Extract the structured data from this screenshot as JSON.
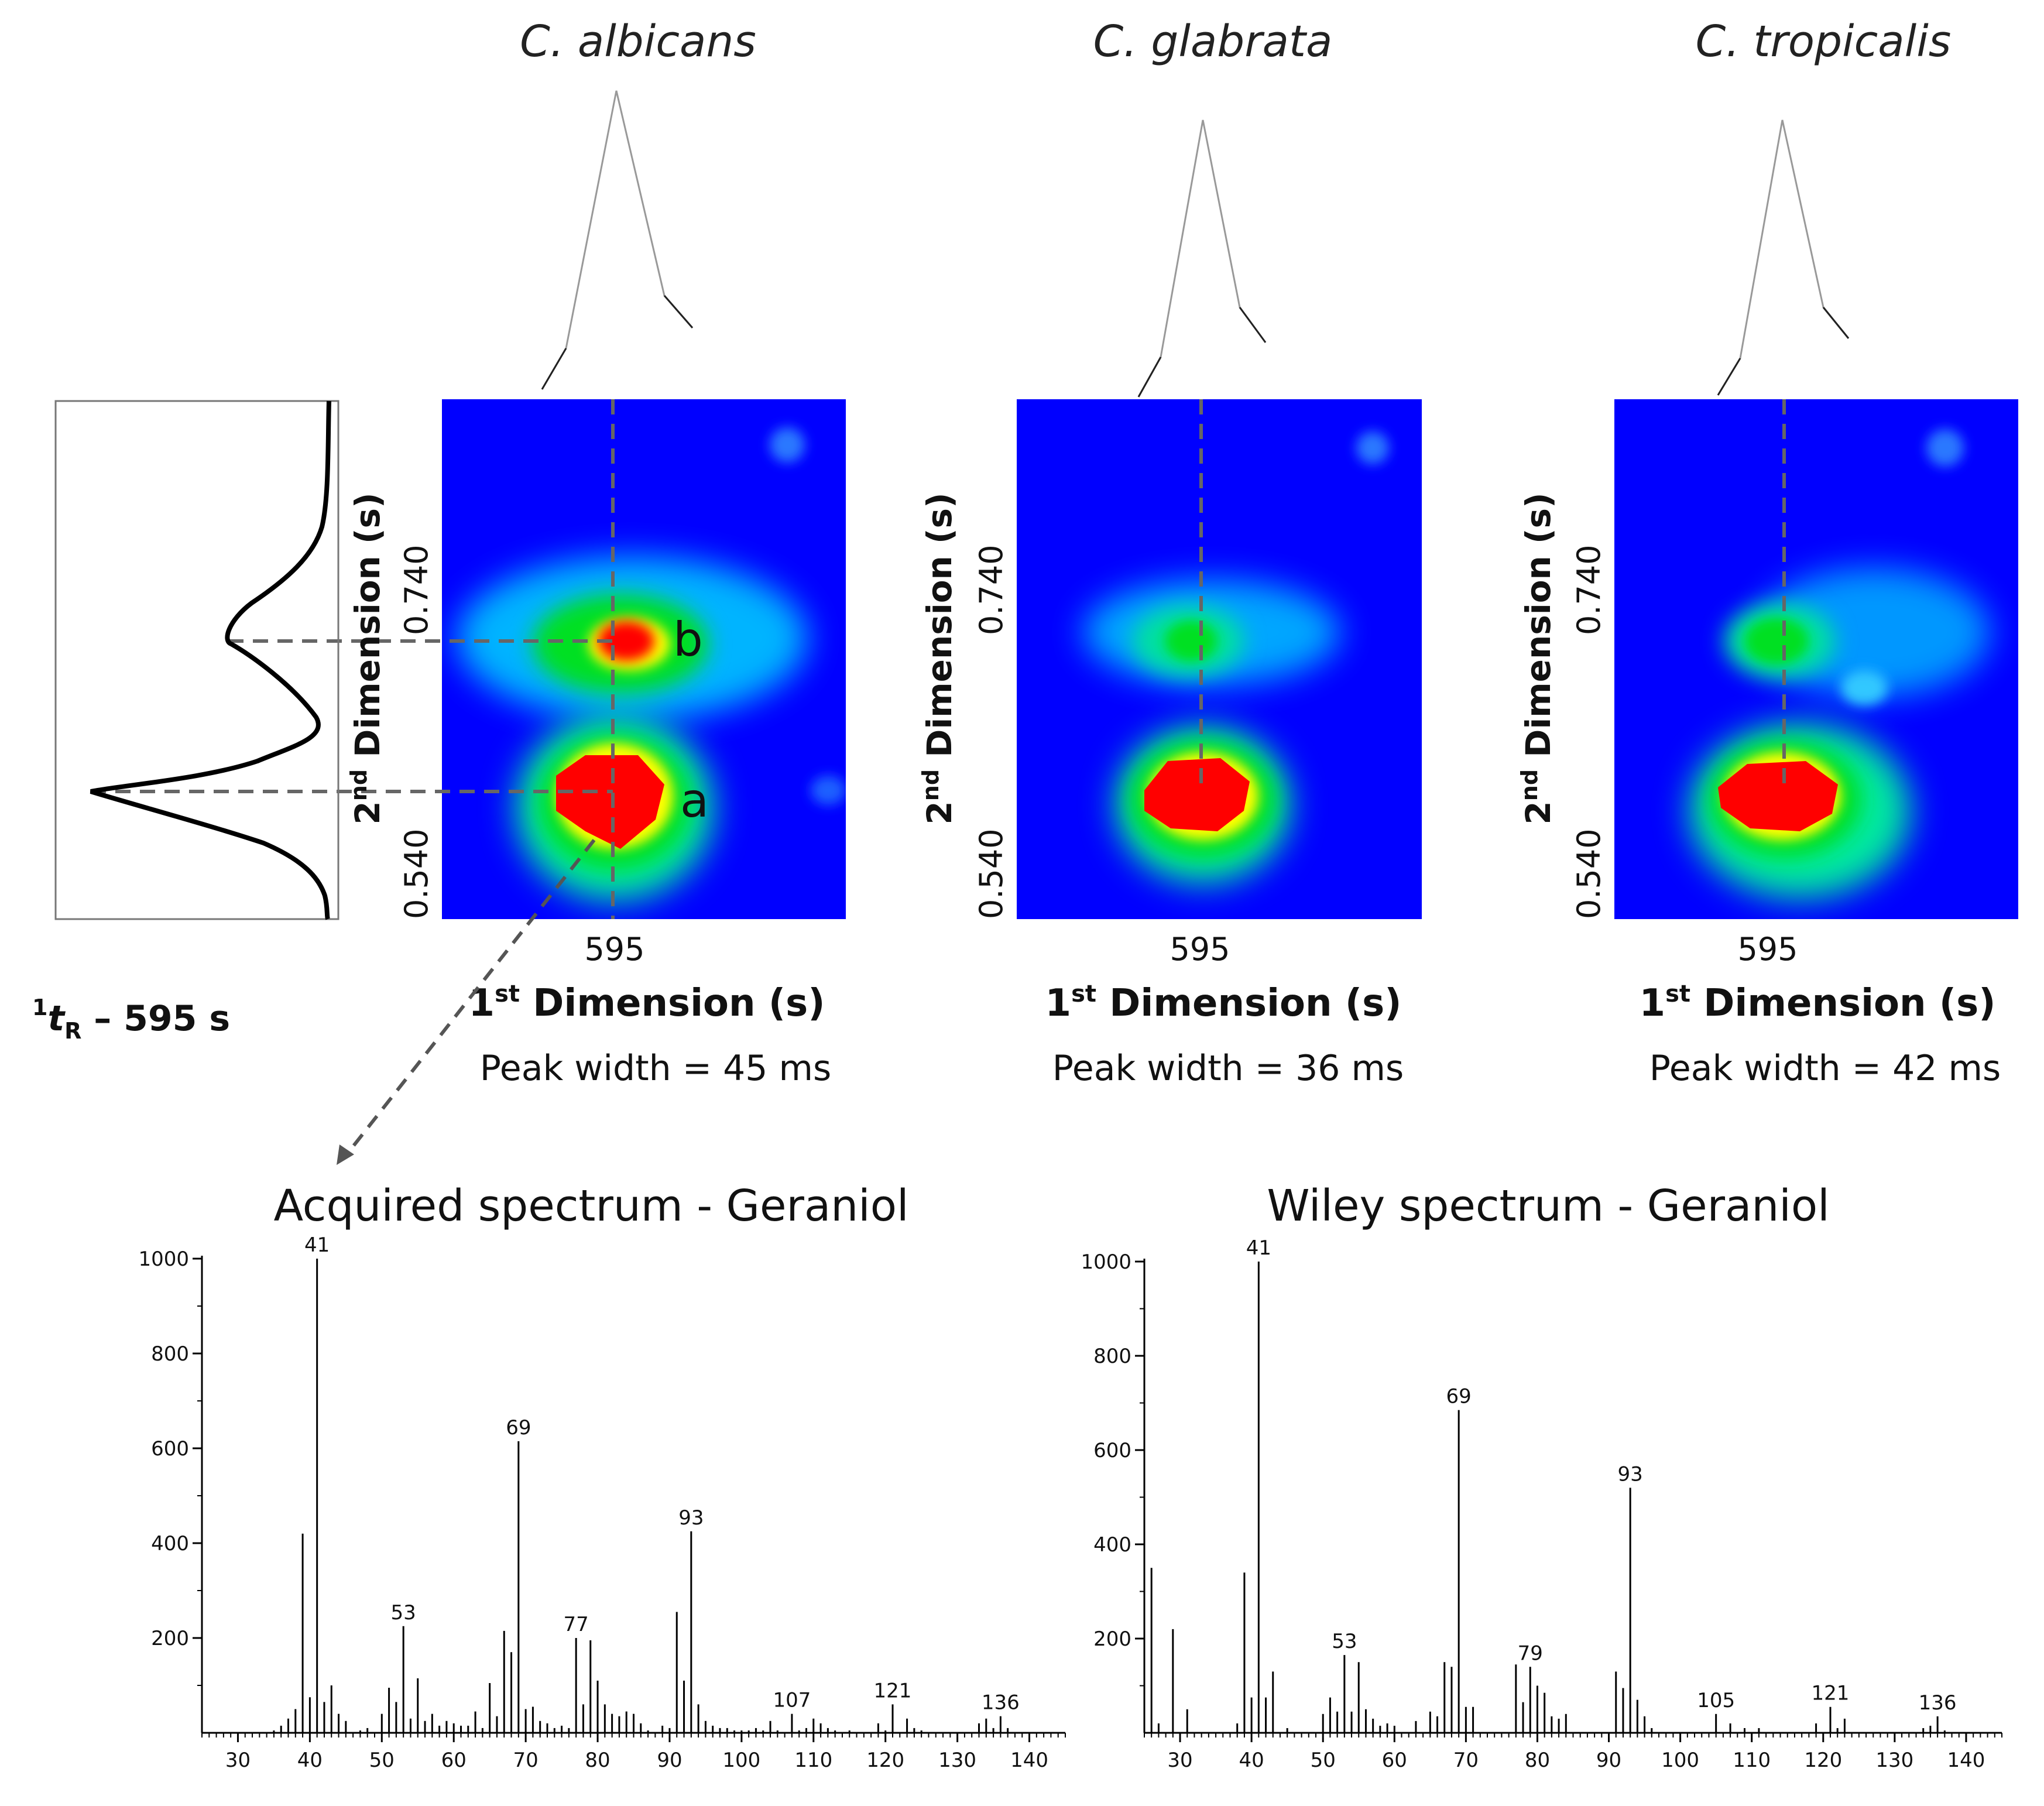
{
  "species": [
    {
      "name": "C. albicans",
      "x_tick": "595",
      "y_ticks": [
        "0.740",
        "0.540"
      ],
      "xlabel_pre": "1",
      "xlabel_sup": "st",
      "xlabel_post": " Dimension (s)",
      "ylabel_pre": "2",
      "ylabel_sup": "nd",
      "ylabel_post": " Dimension (s)",
      "peak_width": "Peak width = 45 ms",
      "labels": [
        "b",
        "a"
      ]
    },
    {
      "name": "C. glabrata",
      "x_tick": "595",
      "y_ticks": [
        "0.740",
        "0.540"
      ],
      "xlabel_pre": "1",
      "xlabel_sup": "st",
      "xlabel_post": " Dimension (s)",
      "ylabel_pre": "2",
      "ylabel_sup": "nd",
      "ylabel_post": " Dimension (s)",
      "peak_width": "Peak width = 36 ms"
    },
    {
      "name": "C. tropicalis",
      "x_tick": "595",
      "y_ticks": [
        "0.740",
        "0.540"
      ],
      "xlabel_pre": "1",
      "xlabel_sup": "st",
      "xlabel_post": " Dimension (s)",
      "ylabel_pre": "2",
      "ylabel_sup": "nd",
      "ylabel_post": " Dimension (s)",
      "peak_width": "Peak width = 42 ms"
    }
  ],
  "retention": {
    "pre": "1",
    "t": "t",
    "sub": "R",
    "post": " – 595 s"
  },
  "colors": {
    "heat_bg": "#0000ff",
    "heat_hot": "#ff0000"
  },
  "chart_data": [
    {
      "type": "bar",
      "title": "Acquired spectrum - Geraniol",
      "xlim": [
        25,
        145
      ],
      "ylim": [
        0,
        1000
      ],
      "xticks": [
        30,
        40,
        50,
        60,
        70,
        80,
        90,
        100,
        110,
        120,
        130,
        140
      ],
      "yticks": [
        200,
        400,
        600,
        800,
        1000
      ],
      "x": [
        35,
        36,
        37,
        38,
        39,
        40,
        41,
        42,
        43,
        44,
        45,
        47,
        48,
        50,
        51,
        52,
        53,
        54,
        55,
        56,
        57,
        58,
        59,
        60,
        61,
        62,
        63,
        64,
        65,
        66,
        67,
        68,
        69,
        70,
        71,
        72,
        73,
        74,
        75,
        76,
        77,
        78,
        79,
        80,
        81,
        82,
        83,
        84,
        85,
        86,
        87,
        89,
        90,
        91,
        92,
        93,
        94,
        95,
        96,
        97,
        98,
        99,
        100,
        101,
        102,
        103,
        104,
        105,
        107,
        108,
        109,
        110,
        111,
        112,
        113,
        115,
        119,
        120,
        121,
        123,
        124,
        125,
        133,
        134,
        135,
        136,
        137
      ],
      "values": [
        5,
        15,
        30,
        50,
        420,
        75,
        1000,
        65,
        100,
        40,
        25,
        5,
        10,
        40,
        95,
        65,
        225,
        30,
        115,
        25,
        40,
        15,
        25,
        20,
        15,
        15,
        45,
        10,
        105,
        35,
        215,
        170,
        615,
        50,
        55,
        25,
        20,
        10,
        15,
        10,
        200,
        60,
        195,
        110,
        60,
        40,
        35,
        45,
        40,
        20,
        5,
        15,
        10,
        255,
        110,
        425,
        60,
        25,
        15,
        10,
        10,
        5,
        5,
        5,
        10,
        5,
        25,
        5,
        40,
        5,
        10,
        30,
        20,
        10,
        5,
        5,
        20,
        5,
        60,
        30,
        10,
        5,
        20,
        30,
        10,
        35,
        10
      ],
      "peak_labels": [
        {
          "x": 41,
          "label": "41"
        },
        {
          "x": 53,
          "label": "53"
        },
        {
          "x": 69,
          "label": "69"
        },
        {
          "x": 77,
          "label": "77"
        },
        {
          "x": 93,
          "label": "93"
        },
        {
          "x": 107,
          "label": "107"
        },
        {
          "x": 121,
          "label": "121"
        },
        {
          "x": 136,
          "label": "136"
        }
      ]
    },
    {
      "type": "bar",
      "title": "Wiley spectrum - Geraniol",
      "xlim": [
        25,
        145
      ],
      "ylim": [
        0,
        1000
      ],
      "xticks": [
        30,
        40,
        50,
        60,
        70,
        80,
        90,
        100,
        110,
        120,
        130,
        140
      ],
      "yticks": [
        200,
        400,
        600,
        800,
        1000
      ],
      "x": [
        26,
        27,
        29,
        31,
        38,
        39,
        40,
        41,
        42,
        43,
        45,
        50,
        51,
        52,
        53,
        54,
        55,
        56,
        57,
        58,
        59,
        60,
        63,
        65,
        66,
        67,
        68,
        69,
        70,
        71,
        77,
        78,
        79,
        80,
        81,
        82,
        83,
        84,
        91,
        92,
        93,
        94,
        95,
        96,
        105,
        107,
        109,
        111,
        119,
        121,
        122,
        123,
        134,
        135,
        136,
        137
      ],
      "values": [
        350,
        20,
        220,
        50,
        20,
        340,
        75,
        1000,
        75,
        130,
        10,
        40,
        75,
        45,
        165,
        45,
        150,
        50,
        30,
        15,
        20,
        15,
        25,
        45,
        35,
        150,
        140,
        685,
        55,
        55,
        145,
        65,
        140,
        100,
        85,
        35,
        30,
        40,
        130,
        95,
        520,
        70,
        35,
        10,
        40,
        20,
        10,
        10,
        20,
        55,
        10,
        30,
        10,
        15,
        35,
        5
      ],
      "peak_labels": [
        {
          "x": 41,
          "label": "41"
        },
        {
          "x": 53,
          "label": "53"
        },
        {
          "x": 69,
          "label": "69"
        },
        {
          "x": 79,
          "label": "79"
        },
        {
          "x": 93,
          "label": "93"
        },
        {
          "x": 105,
          "label": "105"
        },
        {
          "x": 121,
          "label": "121"
        },
        {
          "x": 136,
          "label": "136"
        }
      ]
    }
  ]
}
